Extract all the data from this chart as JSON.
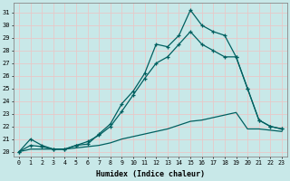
{
  "xlabel": "Humidex (Indice chaleur)",
  "bg_color": "#c8e8e8",
  "grid_color": "#e8c8c8",
  "line_color": "#006060",
  "xlim": [
    -0.5,
    23.5
  ],
  "ylim": [
    19.6,
    31.8
  ],
  "yticks": [
    20,
    21,
    22,
    23,
    24,
    25,
    26,
    27,
    28,
    29,
    30,
    31
  ],
  "xticks": [
    0,
    1,
    2,
    3,
    4,
    5,
    6,
    7,
    8,
    9,
    10,
    11,
    12,
    13,
    14,
    15,
    16,
    17,
    18,
    19,
    20,
    21,
    22,
    23
  ],
  "line1_x": [
    0,
    1,
    2,
    3,
    4,
    5,
    6,
    7,
    8,
    9,
    10,
    11,
    12,
    13,
    14,
    15,
    16,
    17,
    18,
    19,
    20,
    21,
    22,
    23
  ],
  "line1_y": [
    20.0,
    21.0,
    20.5,
    20.2,
    20.2,
    20.5,
    20.6,
    21.4,
    22.2,
    23.8,
    24.8,
    26.2,
    28.5,
    28.3,
    29.2,
    31.2,
    30.0,
    29.5,
    29.2,
    27.5,
    25.0,
    22.5,
    22.0,
    21.8
  ],
  "line2_x": [
    0,
    1,
    2,
    3,
    4,
    5,
    6,
    7,
    8,
    9,
    10,
    11,
    12,
    13,
    14,
    15,
    16,
    17,
    18,
    19,
    20,
    21,
    22,
    23
  ],
  "line2_y": [
    20.0,
    20.5,
    20.4,
    20.2,
    20.2,
    20.5,
    20.8,
    21.3,
    22.0,
    23.2,
    24.5,
    25.8,
    27.0,
    27.5,
    28.5,
    29.5,
    28.5,
    28.0,
    27.5,
    27.5,
    25.0,
    22.5,
    22.0,
    21.8
  ],
  "line3_x": [
    0,
    1,
    2,
    3,
    4,
    5,
    6,
    7,
    8,
    9,
    10,
    11,
    12,
    13,
    14,
    15,
    16,
    17,
    18,
    19,
    20,
    21,
    22,
    23
  ],
  "line3_y": [
    20.0,
    20.2,
    20.2,
    20.2,
    20.2,
    20.3,
    20.4,
    20.5,
    20.7,
    21.0,
    21.2,
    21.4,
    21.6,
    21.8,
    22.1,
    22.4,
    22.5,
    22.7,
    22.9,
    23.1,
    21.8,
    21.8,
    21.7,
    21.6
  ]
}
